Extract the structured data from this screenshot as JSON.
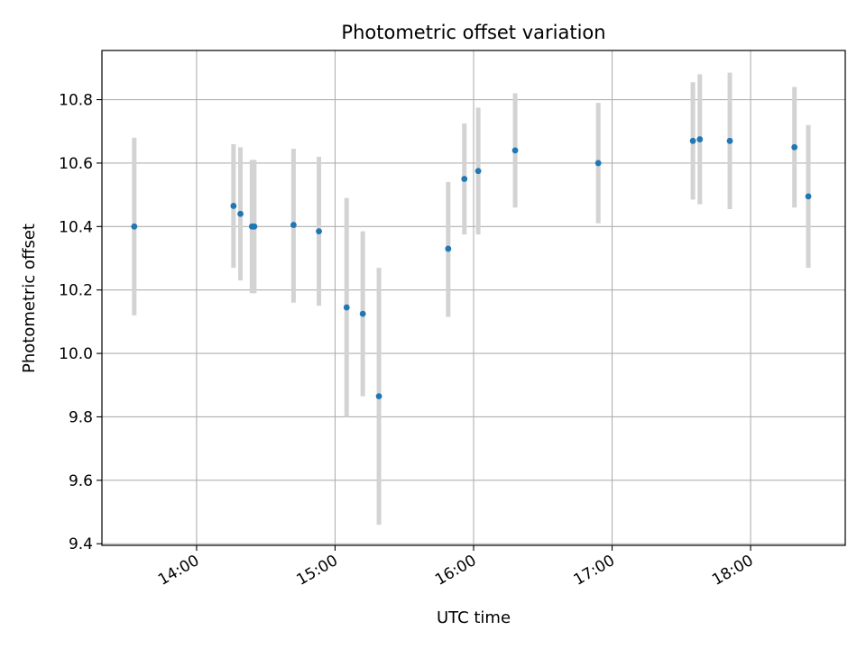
{
  "chart_data": {
    "type": "scatter",
    "title": "Photometric offset variation",
    "xlabel": "UTC time",
    "ylabel": "Photometric offset",
    "x_type": "time",
    "xlim": [
      "13:19",
      "18:41"
    ],
    "ylim": [
      9.395,
      10.955
    ],
    "x_ticks": [
      "14:00",
      "15:00",
      "16:00",
      "17:00",
      "18:00"
    ],
    "y_ticks": [
      9.4,
      9.6,
      9.8,
      10.0,
      10.2,
      10.4,
      10.6,
      10.8
    ],
    "grid": true,
    "point_color": "#1f77b4",
    "errorbar_color": "#d3d3d3",
    "points": [
      {
        "x": "13:33",
        "y": 10.4,
        "low": 10.12,
        "high": 10.68
      },
      {
        "x": "14:16",
        "y": 10.465,
        "low": 10.27,
        "high": 10.66
      },
      {
        "x": "14:19",
        "y": 10.44,
        "low": 10.23,
        "high": 10.65
      },
      {
        "x": "14:24",
        "y": 10.4,
        "low": 10.19,
        "high": 10.61
      },
      {
        "x": "14:25",
        "y": 10.4,
        "low": 10.19,
        "high": 10.61
      },
      {
        "x": "14:42",
        "y": 10.405,
        "low": 10.16,
        "high": 10.645
      },
      {
        "x": "14:53",
        "y": 10.385,
        "low": 10.15,
        "high": 10.62
      },
      {
        "x": "15:05",
        "y": 10.145,
        "low": 9.8,
        "high": 10.49
      },
      {
        "x": "15:12",
        "y": 10.125,
        "low": 9.865,
        "high": 10.385
      },
      {
        "x": "15:19",
        "y": 9.865,
        "low": 9.46,
        "high": 10.27
      },
      {
        "x": "15:49",
        "y": 10.33,
        "low": 10.115,
        "high": 10.54
      },
      {
        "x": "15:56",
        "y": 10.55,
        "low": 10.375,
        "high": 10.725
      },
      {
        "x": "16:02",
        "y": 10.575,
        "low": 10.375,
        "high": 10.775
      },
      {
        "x": "16:18",
        "y": 10.64,
        "low": 10.46,
        "high": 10.82
      },
      {
        "x": "16:54",
        "y": 10.6,
        "low": 10.41,
        "high": 10.79
      },
      {
        "x": "17:35",
        "y": 10.67,
        "low": 10.485,
        "high": 10.855
      },
      {
        "x": "17:38",
        "y": 10.675,
        "low": 10.47,
        "high": 10.88
      },
      {
        "x": "17:51",
        "y": 10.67,
        "low": 10.455,
        "high": 10.885
      },
      {
        "x": "18:19",
        "y": 10.65,
        "low": 10.46,
        "high": 10.84
      },
      {
        "x": "18:25",
        "y": 10.495,
        "low": 10.27,
        "high": 10.72
      }
    ]
  }
}
